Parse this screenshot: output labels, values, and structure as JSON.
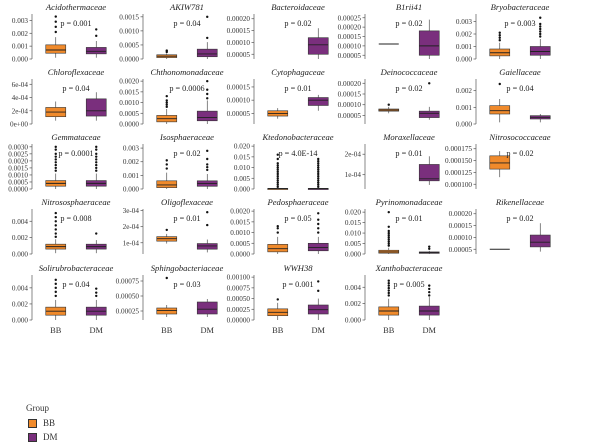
{
  "chart_data": {
    "type": "boxplot",
    "groups": [
      "BB",
      "DM"
    ],
    "colors": {
      "BB": "#f08a2b",
      "DM": "#7a2f7d"
    },
    "legend": {
      "title": "Group",
      "position": "bottom-left",
      "items": [
        "BB",
        "DM"
      ]
    },
    "panels": [
      {
        "title": "Acidothermaceae",
        "p": "p = 0.001",
        "ticks": [
          "0.000",
          "0.001",
          "0.002",
          "0.003"
        ],
        "ylim": [
          0,
          0.0035
        ],
        "boxes": {
          "BB": [
            0.0001,
            0.00045,
            0.0007,
            0.0011,
            0.0017
          ],
          "DM": [
            0.0001,
            0.0004,
            0.0006,
            0.0009,
            0.0014
          ]
        },
        "outliers": {
          "BB": [
            0.0021,
            0.0025,
            0.0029,
            0.0033
          ],
          "DM": [
            0.0018,
            0.0023
          ]
        }
      },
      {
        "title": "AKIW781",
        "p": "p = 0.04",
        "ticks": [
          "0.0000",
          "0.0005",
          "0.0010",
          "0.0015"
        ],
        "ylim": [
          0,
          0.0016
        ],
        "boxes": {
          "BB": [
            0.0,
            5e-05,
            0.0001,
            0.00015,
            0.0002
          ],
          "DM": [
            0.0,
            8e-05,
            0.00018,
            0.00035,
            0.0006
          ]
        },
        "outliers": {
          "BB": [
            0.00025,
            0.0003
          ],
          "DM": [
            0.00075,
            0.0015
          ]
        }
      },
      {
        "title": "Bacteroidaceae",
        "p": "p = 0.02",
        "ticks": [
          "0.00005",
          "0.00010",
          "0.00015",
          "0.00020"
        ],
        "ylim": [
          3e-05,
          0.00022
        ],
        "boxes": {
          "DM": [
            3e-05,
            5e-05,
            9e-05,
            0.00012,
            0.00016
          ]
        },
        "outliers": {}
      },
      {
        "title": "B1rii41",
        "p": "p = 0.02",
        "ticks": [
          "0.00005",
          "0.00010",
          "0.00015",
          "0.00020",
          "0.00025"
        ],
        "ylim": [
          3e-05,
          0.00027
        ],
        "boxes": {
          "BB": [
            0.00011,
            0.00011,
            0.00011,
            0.00011,
            0.00011
          ],
          "DM": [
            3e-05,
            5e-05,
            0.0001,
            0.00018,
            0.00024
          ]
        },
        "outliers": {}
      },
      {
        "title": "Bryobacteraceae",
        "p": "p = 0.003",
        "ticks": [
          "0.000",
          "0.001",
          "0.002",
          "0.003"
        ],
        "ylim": [
          0,
          0.0036
        ],
        "boxes": {
          "BB": [
            0.0,
            0.00025,
            0.0005,
            0.0008,
            0.0013
          ],
          "DM": [
            0.0,
            0.0003,
            0.0006,
            0.001,
            0.0016
          ]
        },
        "outliers": {
          "BB": [
            0.0015,
            0.0017,
            0.0019,
            0.0021
          ],
          "DM": [
            0.0018,
            0.002,
            0.0022,
            0.0024,
            0.0026,
            0.0028,
            0.0033
          ]
        }
      },
      {
        "title": "Chloroflexaceae",
        "p": "p = 0.04",
        "ticks": [
          "0e+00",
          "2e-04",
          "4e-04",
          "6e-04"
        ],
        "ylim": [
          0,
          0.00068
        ],
        "boxes": {
          "BB": [
            5e-05,
            0.00011,
            0.00018,
            0.00025,
            0.00034
          ],
          "DM": [
            5e-05,
            0.00012,
            0.0002,
            0.00038,
            0.00048
          ]
        },
        "outliers": {}
      },
      {
        "title": "Chthonomonadaceae",
        "p": "p = 0.0006",
        "ticks": [
          "0.0000",
          "0.0005",
          "0.0010",
          "0.0015",
          "0.0020"
        ],
        "ylim": [
          0,
          0.0021
        ],
        "boxes": {
          "BB": [
            0.0,
            0.0001,
            0.00025,
            0.0004,
            0.0007
          ],
          "DM": [
            0.0,
            0.00015,
            0.0003,
            0.0006,
            0.0011
          ]
        },
        "outliers": {
          "BB": [
            0.0008,
            0.0009,
            0.001,
            0.0011,
            0.0013
          ],
          "DM": [
            0.0012,
            0.0014,
            0.0016,
            0.002
          ]
        }
      },
      {
        "title": "Cytophagaceae",
        "p": "p = 0.01",
        "ticks": [
          "0.00005",
          "0.00010",
          "0.00015"
        ],
        "ylim": [
          1e-05,
          0.00018
        ],
        "boxes": {
          "BB": [
            3e-05,
            4e-05,
            5e-05,
            6e-05,
            7e-05
          ],
          "DM": [
            6e-05,
            8e-05,
            0.0001,
            0.00011,
            0.00012
          ]
        },
        "outliers": {}
      },
      {
        "title": "Deinococcaceae",
        "p": "p = 0.02",
        "ticks": [
          "0.00005",
          "0.00010",
          "0.00015",
          "0.00020"
        ],
        "ylim": [
          1e-05,
          0.00022
        ],
        "boxes": {
          "BB": [
            6e-05,
            7e-05,
            7.5e-05,
            8e-05,
            9e-05
          ],
          "DM": [
            3e-05,
            4e-05,
            6e-05,
            7e-05,
            9e-05
          ]
        },
        "outliers": {
          "BB": [
            0.0001
          ],
          "DM": [
            0.0002
          ]
        }
      },
      {
        "title": "Gaiellaceae",
        "p": "p = 0.04",
        "ticks": [
          "0.000",
          "0.001",
          "0.002"
        ],
        "ylim": [
          0,
          0.0027
        ],
        "boxes": {
          "BB": [
            0.0001,
            0.0006,
            0.0008,
            0.0011,
            0.0015
          ],
          "DM": [
            0.0001,
            0.0003,
            0.0004,
            0.0005,
            0.0006
          ]
        },
        "outliers": {
          "BB": [
            0.0024
          ]
        }
      },
      {
        "title": "Gemmataceae",
        "p": "p = 0.0001",
        "ticks": [
          "0.0000",
          "0.0005",
          "0.0010",
          "0.0015",
          "0.0020",
          "0.0025",
          "0.0030"
        ],
        "ylim": [
          0,
          0.0032
        ],
        "boxes": {
          "BB": [
            0.0,
            0.0002,
            0.0004,
            0.0006,
            0.0011
          ],
          "DM": [
            0.0,
            0.0002,
            0.0004,
            0.0006,
            0.0011
          ]
        },
        "outliers": {
          "BB": [
            0.0013,
            0.0015,
            0.0017,
            0.0019,
            0.0021,
            0.0023,
            0.0025,
            0.0028,
            0.003
          ],
          "DM": [
            0.0013,
            0.0015,
            0.0017,
            0.0019,
            0.0021,
            0.0023,
            0.0025,
            0.0028,
            0.003
          ]
        }
      },
      {
        "title": "Isosphaeraceae",
        "p": "p = 0.02",
        "ticks": [
          "0.000",
          "0.001",
          "0.002",
          "0.003"
        ],
        "ylim": [
          0,
          0.0033
        ],
        "boxes": {
          "BB": [
            0.0,
            0.0001,
            0.0003,
            0.0006,
            0.0012
          ],
          "DM": [
            0.0,
            0.0002,
            0.0004,
            0.0006,
            0.0011
          ]
        },
        "outliers": {
          "BB": [
            0.0015,
            0.0018,
            0.0021
          ],
          "DM": [
            0.0014,
            0.0016,
            0.0018,
            0.0022,
            0.0028
          ]
        }
      },
      {
        "title": "Ktedonobacteraceae",
        "p": "p = 4.0E-14",
        "ticks": [
          "0.000",
          "0.005",
          "0.010",
          "0.015",
          "0.020"
        ],
        "ylim": [
          0,
          0.021
        ],
        "boxes": {
          "BB": [
            0.0,
            0.0001,
            0.0002,
            0.0003,
            0.0005
          ],
          "DM": [
            0.0,
            0.0001,
            0.0002,
            0.0003,
            0.0005
          ]
        },
        "outliers": {
          "BB": [
            0.001,
            0.002,
            0.003,
            0.004,
            0.005,
            0.006,
            0.007,
            0.008,
            0.009,
            0.01,
            0.011,
            0.012,
            0.014,
            0.016
          ],
          "DM": [
            0.001,
            0.002,
            0.003,
            0.004,
            0.005,
            0.006,
            0.007,
            0.008,
            0.009,
            0.01,
            0.011,
            0.012,
            0.013,
            0.014
          ]
        }
      },
      {
        "title": "Moraxellaceae",
        "p": "p = 0.01",
        "ticks": [
          "1e-04",
          "2e-04"
        ],
        "ylim": [
          3e-05,
          0.00025
        ],
        "boxes": {
          "DM": [
            5e-05,
            7e-05,
            8e-05,
            0.00015,
            0.00019
          ]
        },
        "outliers": {}
      },
      {
        "title": "Nitrosococcaceae",
        "p": "p = 0.02",
        "ticks": [
          "0.000100",
          "0.000125",
          "0.000150",
          "0.000175"
        ],
        "ylim": [
          9e-05,
          0.000185
        ],
        "boxes": {
          "BB": [
            0.000115,
            0.000132,
            0.000145,
            0.00016,
            0.00017
          ]
        },
        "outliers": {}
      },
      {
        "title": "Nitrososphaeraceae",
        "p": "p = 0.008",
        "ticks": [
          "0.000",
          "0.002",
          "0.004"
        ],
        "ylim": [
          0,
          0.0055
        ],
        "boxes": {
          "BB": [
            0.0001,
            0.0006,
            0.0009,
            0.0012,
            0.0018
          ],
          "DM": [
            0.0001,
            0.0006,
            0.0009,
            0.0012,
            0.0017
          ]
        },
        "outliers": {
          "BB": [
            0.0021,
            0.0025,
            0.003,
            0.0035,
            0.004,
            0.0045,
            0.005
          ],
          "DM": [
            0.0025
          ]
        }
      },
      {
        "title": "Oligoflexaceae",
        "p": "p = 0.01",
        "ticks": [
          "1e-04",
          "2e-04",
          "3e-04"
        ],
        "ylim": [
          3e-05,
          0.00031
        ],
        "boxes": {
          "BB": [
            9.5e-05,
            0.00011,
            0.000125,
            0.000138,
            0.000155
          ],
          "DM": [
            4e-05,
            6e-05,
            8e-05,
            9.5e-05,
            0.00012
          ]
        },
        "outliers": {
          "BB": [
            0.00018
          ],
          "DM": [
            0.00021,
            0.00029
          ]
        }
      },
      {
        "title": "Pedosphaeraceae",
        "p": "p = 0.05",
        "ticks": [
          "0.0000",
          "0.0005",
          "0.0010",
          "0.0015",
          "0.0020"
        ],
        "ylim": [
          0,
          0.0021
        ],
        "boxes": {
          "BB": [
            0.0,
            0.0001,
            0.00025,
            0.00045,
            0.0008
          ],
          "DM": [
            0.0,
            0.00015,
            0.0003,
            0.0005,
            0.0008
          ]
        },
        "outliers": {
          "BB": [
            0.001,
            0.0012,
            0.0013
          ],
          "DM": [
            0.001,
            0.0012,
            0.0014,
            0.0016,
            0.0019
          ]
        }
      },
      {
        "title": "Pyrinomonadaceae",
        "p": "p = 0.01",
        "ticks": [
          "0.000",
          "0.005",
          "0.010",
          "0.015",
          "0.020"
        ],
        "ylim": [
          0,
          0.0215
        ],
        "boxes": {
          "BB": [
            0.0,
            0.0004,
            0.001,
            0.0018,
            0.003
          ],
          "DM": [
            0.0,
            0.0003,
            0.0007,
            0.001,
            0.0015
          ]
        },
        "outliers": {
          "BB": [
            0.004,
            0.005,
            0.006,
            0.007,
            0.008,
            0.009,
            0.01,
            0.011,
            0.013,
            0.02
          ],
          "DM": [
            0.0025,
            0.0035
          ]
        }
      },
      {
        "title": "Rikenellaceae",
        "p": "p = 0.02",
        "ticks": [
          "0.00005",
          "0.00010",
          "0.00015",
          "0.00020"
        ],
        "ylim": [
          3e-05,
          0.00022
        ],
        "boxes": {
          "BB": [
            5e-05,
            5e-05,
            5e-05,
            5e-05,
            5e-05
          ],
          "DM": [
            4e-05,
            6e-05,
            8e-05,
            0.00011,
            0.00016
          ]
        },
        "outliers": {}
      },
      {
        "title": "Solirubrobacteraceae",
        "p": "p = 0.04",
        "ticks": [
          "0.000",
          "0.002",
          "0.004"
        ],
        "ylim": [
          0,
          0.0056
        ],
        "boxes": {
          "BB": [
            0.0,
            0.0006,
            0.0011,
            0.0016,
            0.0025
          ],
          "DM": [
            0.0,
            0.0006,
            0.0011,
            0.0016,
            0.0025
          ]
        },
        "outliers": {
          "BB": [
            0.003,
            0.0035,
            0.004,
            0.0045,
            0.005
          ],
          "DM": [
            0.003,
            0.0034,
            0.0039
          ]
        }
      },
      {
        "title": "Sphingobacteriaceae",
        "p": "p = 0.03",
        "ticks": [
          "0.00025",
          "0.00050",
          "0.00075"
        ],
        "ylim": [
          0.0001,
          0.00085
        ],
        "boxes": {
          "BB": [
            0.00015,
            0.0002,
            0.00026,
            0.0003,
            0.00035
          ],
          "DM": [
            0.00015,
            0.0002,
            0.00028,
            0.0004,
            0.00045
          ]
        },
        "outliers": {
          "BB": [
            0.0008
          ],
          "DM": []
        }
      },
      {
        "title": "WWH38",
        "p": "p = 0.001",
        "ticks": [
          "0.00000",
          "0.00025",
          "0.00050",
          "0.00075",
          "0.00100"
        ],
        "ylim": [
          0,
          0.00105
        ],
        "boxes": {
          "BB": [
            0.0,
            0.0001,
            0.00018,
            0.00026,
            0.0004
          ],
          "DM": [
            0.0,
            0.00014,
            0.00024,
            0.00035,
            0.0005
          ]
        },
        "outliers": {
          "BB": [
            0.00048
          ],
          "DM": [
            0.00068,
            0.0009
          ]
        }
      },
      {
        "title": "Xanthobacteraceae",
        "p": "p = 0.005",
        "ticks": [
          "0.000",
          "0.002",
          "0.004"
        ],
        "ylim": [
          0,
          0.0055
        ],
        "boxes": {
          "BB": [
            0.0,
            0.0006,
            0.0011,
            0.0016,
            0.0026
          ],
          "DM": [
            0.0,
            0.0006,
            0.0011,
            0.0017,
            0.0028
          ]
        },
        "outliers": {
          "BB": [
            0.003,
            0.0033,
            0.0036,
            0.0039,
            0.0042,
            0.0045,
            0.0048
          ],
          "DM": [
            0.003,
            0.0034,
            0.0038,
            0.0042
          ]
        }
      }
    ]
  }
}
